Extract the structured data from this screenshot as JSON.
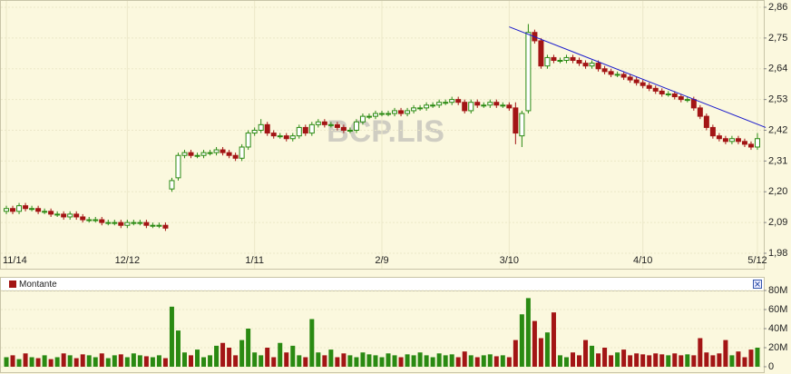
{
  "chart_data": {
    "type": "candlestick",
    "watermark": "BCP.LIS",
    "categories": [
      "11/14",
      null,
      null,
      null,
      null,
      null,
      null,
      null,
      null,
      null,
      null,
      null,
      null,
      null,
      null,
      null,
      null,
      null,
      null,
      "12/12",
      null,
      null,
      null,
      null,
      null,
      null,
      null,
      null,
      null,
      null,
      null,
      null,
      null,
      null,
      null,
      null,
      null,
      null,
      null,
      "1/11",
      null,
      null,
      null,
      null,
      null,
      null,
      null,
      null,
      null,
      null,
      null,
      null,
      null,
      null,
      null,
      null,
      null,
      null,
      null,
      "2/9",
      null,
      null,
      null,
      null,
      null,
      null,
      null,
      null,
      null,
      null,
      null,
      null,
      null,
      null,
      null,
      null,
      null,
      null,
      null,
      "3/10",
      null,
      null,
      null,
      null,
      null,
      null,
      null,
      null,
      null,
      null,
      null,
      null,
      null,
      null,
      null,
      null,
      null,
      null,
      null,
      null,
      "4/10",
      null,
      null,
      null,
      null,
      null,
      null,
      null,
      null,
      null,
      null,
      null,
      null,
      null,
      null,
      null,
      null,
      null,
      "5/12"
    ],
    "open": [
      2.13,
      2.14,
      2.13,
      2.15,
      2.14,
      2.14,
      2.13,
      2.13,
      2.12,
      2.12,
      2.11,
      2.12,
      2.11,
      2.1,
      2.1,
      2.1,
      2.09,
      2.09,
      2.09,
      2.08,
      2.09,
      2.09,
      2.09,
      2.08,
      2.08,
      2.08,
      2.21,
      2.25,
      2.33,
      2.34,
      2.33,
      2.33,
      2.34,
      2.34,
      2.35,
      2.34,
      2.33,
      2.32,
      2.36,
      2.41,
      2.42,
      2.44,
      2.41,
      2.4,
      2.4,
      2.39,
      2.4,
      2.43,
      2.41,
      2.44,
      2.45,
      2.44,
      2.44,
      2.43,
      2.42,
      2.42,
      2.45,
      2.47,
      2.47,
      2.48,
      2.48,
      2.48,
      2.49,
      2.48,
      2.49,
      2.5,
      2.5,
      2.51,
      2.51,
      2.52,
      2.52,
      2.53,
      2.52,
      2.49,
      2.52,
      2.51,
      2.51,
      2.52,
      2.51,
      2.51,
      2.5,
      2.4,
      2.49,
      2.77,
      2.74,
      2.65,
      2.68,
      2.67,
      2.67,
      2.68,
      2.67,
      2.66,
      2.65,
      2.66,
      2.64,
      2.63,
      2.62,
      2.62,
      2.61,
      2.6,
      2.59,
      2.58,
      2.57,
      2.56,
      2.55,
      2.55,
      2.54,
      2.53,
      2.53,
      2.5,
      2.47,
      2.43,
      2.4,
      2.39,
      2.38,
      2.39,
      2.38,
      2.37,
      2.36
    ],
    "high": [
      2.15,
      2.15,
      2.16,
      2.16,
      2.15,
      2.15,
      2.14,
      2.14,
      2.13,
      2.13,
      2.13,
      2.13,
      2.12,
      2.11,
      2.11,
      2.11,
      2.1,
      2.1,
      2.1,
      2.1,
      2.1,
      2.1,
      2.1,
      2.09,
      2.09,
      2.09,
      2.25,
      2.34,
      2.35,
      2.35,
      2.34,
      2.35,
      2.35,
      2.36,
      2.36,
      2.35,
      2.34,
      2.37,
      2.42,
      2.43,
      2.46,
      2.45,
      2.42,
      2.41,
      2.41,
      2.41,
      2.44,
      2.44,
      2.45,
      2.46,
      2.46,
      2.45,
      2.45,
      2.44,
      2.43,
      2.46,
      2.48,
      2.48,
      2.49,
      2.49,
      2.49,
      2.5,
      2.5,
      2.5,
      2.51,
      2.51,
      2.52,
      2.52,
      2.53,
      2.53,
      2.54,
      2.54,
      2.53,
      2.53,
      2.53,
      2.52,
      2.53,
      2.53,
      2.52,
      2.52,
      2.52,
      2.49,
      2.8,
      2.78,
      2.75,
      2.69,
      2.69,
      2.68,
      2.69,
      2.69,
      2.68,
      2.67,
      2.67,
      2.67,
      2.65,
      2.64,
      2.63,
      2.63,
      2.62,
      2.61,
      2.6,
      2.59,
      2.58,
      2.57,
      2.56,
      2.56,
      2.55,
      2.54,
      2.54,
      2.51,
      2.48,
      2.44,
      2.41,
      2.4,
      2.4,
      2.4,
      2.39,
      2.38,
      2.41
    ],
    "low": [
      2.12,
      2.12,
      2.12,
      2.13,
      2.13,
      2.12,
      2.12,
      2.11,
      2.11,
      2.1,
      2.1,
      2.1,
      2.09,
      2.09,
      2.09,
      2.08,
      2.08,
      2.08,
      2.07,
      2.07,
      2.08,
      2.08,
      2.07,
      2.07,
      2.07,
      2.06,
      2.2,
      2.24,
      2.32,
      2.32,
      2.32,
      2.32,
      2.33,
      2.33,
      2.33,
      2.32,
      2.31,
      2.31,
      2.35,
      2.4,
      2.41,
      2.4,
      2.39,
      2.39,
      2.38,
      2.38,
      2.39,
      2.4,
      2.4,
      2.43,
      2.43,
      2.43,
      2.42,
      2.41,
      2.41,
      2.41,
      2.44,
      2.46,
      2.46,
      2.47,
      2.47,
      2.47,
      2.47,
      2.47,
      2.48,
      2.49,
      2.49,
      2.5,
      2.5,
      2.51,
      2.51,
      2.51,
      2.48,
      2.48,
      2.5,
      2.5,
      2.5,
      2.5,
      2.5,
      2.49,
      2.37,
      2.36,
      2.48,
      2.73,
      2.64,
      2.64,
      2.66,
      2.66,
      2.66,
      2.66,
      2.65,
      2.64,
      2.64,
      2.63,
      2.62,
      2.61,
      2.61,
      2.6,
      2.59,
      2.58,
      2.57,
      2.56,
      2.55,
      2.54,
      2.54,
      2.53,
      2.52,
      2.52,
      2.49,
      2.46,
      2.42,
      2.39,
      2.38,
      2.37,
      2.37,
      2.37,
      2.36,
      2.35,
      2.35
    ],
    "close": [
      2.14,
      2.13,
      2.15,
      2.14,
      2.14,
      2.13,
      2.13,
      2.12,
      2.12,
      2.11,
      2.12,
      2.11,
      2.1,
      2.1,
      2.1,
      2.09,
      2.09,
      2.09,
      2.08,
      2.09,
      2.09,
      2.09,
      2.08,
      2.08,
      2.08,
      2.07,
      2.24,
      2.33,
      2.34,
      2.33,
      2.33,
      2.34,
      2.34,
      2.35,
      2.34,
      2.33,
      2.32,
      2.36,
      2.41,
      2.42,
      2.44,
      2.41,
      2.4,
      2.4,
      2.39,
      2.4,
      2.43,
      2.41,
      2.44,
      2.45,
      2.44,
      2.44,
      2.43,
      2.42,
      2.42,
      2.45,
      2.47,
      2.47,
      2.48,
      2.48,
      2.48,
      2.49,
      2.48,
      2.49,
      2.5,
      2.5,
      2.51,
      2.51,
      2.52,
      2.52,
      2.53,
      2.52,
      2.49,
      2.52,
      2.51,
      2.51,
      2.52,
      2.51,
      2.51,
      2.5,
      2.41,
      2.48,
      2.77,
      2.74,
      2.65,
      2.68,
      2.67,
      2.67,
      2.68,
      2.67,
      2.66,
      2.65,
      2.66,
      2.64,
      2.63,
      2.62,
      2.62,
      2.61,
      2.6,
      2.59,
      2.58,
      2.57,
      2.56,
      2.55,
      2.55,
      2.54,
      2.53,
      2.53,
      2.5,
      2.47,
      2.43,
      2.4,
      2.39,
      2.38,
      2.39,
      2.38,
      2.37,
      2.36,
      2.39
    ],
    "volume": [
      10,
      12,
      8,
      14,
      10,
      9,
      12,
      8,
      10,
      14,
      12,
      9,
      13,
      12,
      10,
      14,
      9,
      12,
      13,
      10,
      14,
      12,
      11,
      10,
      12,
      9,
      63,
      38,
      15,
      12,
      18,
      10,
      12,
      22,
      25,
      20,
      12,
      28,
      40,
      15,
      12,
      20,
      10,
      25,
      15,
      22,
      12,
      10,
      50,
      15,
      12,
      18,
      10,
      14,
      12,
      10,
      15,
      13,
      12,
      10,
      14,
      12,
      10,
      13,
      12,
      15,
      12,
      10,
      14,
      12,
      13,
      10,
      16,
      12,
      10,
      12,
      13,
      11,
      12,
      10,
      28,
      55,
      72,
      48,
      30,
      36,
      57,
      12,
      10,
      15,
      12,
      28,
      22,
      14,
      20,
      12,
      15,
      18,
      12,
      14,
      13,
      12,
      14,
      13,
      12,
      14,
      12,
      13,
      12,
      30,
      15,
      12,
      14,
      28,
      12,
      16,
      10,
      18,
      20
    ],
    "ylim": [
      1.98,
      2.86
    ],
    "yticks": [
      {
        "value": 1.98,
        "label": "1,98"
      },
      {
        "value": 2.09,
        "label": "2,09"
      },
      {
        "value": 2.2,
        "label": "2,20"
      },
      {
        "value": 2.31,
        "label": "2,31"
      },
      {
        "value": 2.42,
        "label": "2,42"
      },
      {
        "value": 2.53,
        "label": "2,53"
      },
      {
        "value": 2.64,
        "label": "2,64"
      },
      {
        "value": 2.75,
        "label": "2,75"
      },
      {
        "value": 2.86,
        "label": "2,86"
      }
    ],
    "volume_ylim": [
      0,
      80
    ],
    "volume_yticks": [
      0,
      {
        "value": 20,
        "label": "20M"
      },
      {
        "value": 40,
        "label": "40M"
      },
      {
        "value": 60,
        "label": "60M"
      },
      {
        "value": 80,
        "label": "80M"
      }
    ],
    "volume_legend": {
      "name": "Montante",
      "color": "#a31515"
    },
    "up_color": "#2a8a12",
    "down_color": "#a31515",
    "trend_line": {
      "x": [
        79,
        119.3
      ],
      "y": [
        2.79,
        2.43
      ],
      "color": "#1a1acc"
    },
    "grid": true
  }
}
